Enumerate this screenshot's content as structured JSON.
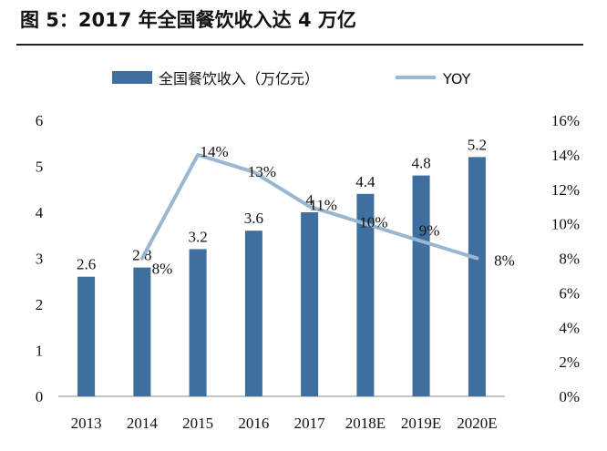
{
  "figure": {
    "title": "图 5：2017 年全国餐饮收入达 4 万亿"
  },
  "chart_data": {
    "type": "bar+line",
    "title": "图 5：2017 年全国餐饮收入达 4 万亿",
    "categories": [
      "2013",
      "2014",
      "2015",
      "2016",
      "2017",
      "2018E",
      "2019E",
      "2020E"
    ],
    "series": [
      {
        "name": "全国餐饮收入（万亿元）",
        "type": "bar",
        "axis": "left",
        "values": [
          2.6,
          2.8,
          3.2,
          3.6,
          4,
          4.4,
          4.8,
          5.2
        ],
        "labels": [
          "2.6",
          "2.8",
          "3.2",
          "3.6",
          "4",
          "4.4",
          "4.8",
          "5.2"
        ]
      },
      {
        "name": "YOY",
        "type": "line",
        "axis": "right",
        "values": [
          null,
          8,
          14,
          13,
          11,
          10,
          9,
          8
        ],
        "labels": [
          null,
          "8%",
          "14%",
          "13%",
          "11%",
          "10%",
          "9%",
          "8%"
        ]
      }
    ],
    "ylim_left": [
      0,
      6
    ],
    "left_ticks": [
      "0",
      "1",
      "2",
      "3",
      "4",
      "5",
      "6"
    ],
    "ylim_right": [
      0,
      16
    ],
    "right_ticks": [
      "0%",
      "2%",
      "4%",
      "6%",
      "8%",
      "10%",
      "12%",
      "14%",
      "16%"
    ],
    "legend": "top",
    "grid": false,
    "colors": {
      "bar": "#3f6f9e",
      "line": "#9ab7d1"
    }
  }
}
